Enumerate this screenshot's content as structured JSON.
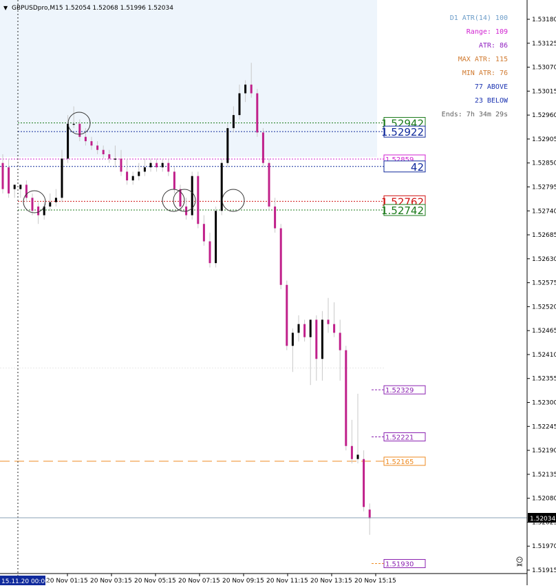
{
  "header": {
    "collapse_glyph": "▼",
    "symbol_line": "GBPUSDpro,M15  1.52054 1.52068 1.51996 1.52034"
  },
  "colors": {
    "bull": "#000000",
    "bear": "#c0208a",
    "wick": "#c8c8c8",
    "zone": "#eef5fc",
    "green": "#1a7a1a",
    "blue": "#102a9c",
    "magenta": "#d020d0",
    "red": "#d01010",
    "orange": "#ee8a20",
    "purple": "#8a20b0"
  },
  "info_panel": [
    {
      "text": "D1 ATR(14) 100",
      "color": "#6c9cc8"
    },
    {
      "text": "Range: 109",
      "color": "#d020d0"
    },
    {
      "text": "ATR: 86",
      "color": "#9020c0"
    },
    {
      "text": "MAX ATR: 115",
      "color": "#d07a30"
    },
    {
      "text": "MIN ATR: 76",
      "color": "#d07a30"
    },
    {
      "text": "77 ABOVE",
      "color": "#1a32b0"
    },
    {
      "text": "23 BELOW",
      "color": "#1a32b0"
    },
    {
      "text": "Ends: 7h 34m 29s",
      "color": "#606060"
    }
  ],
  "price_axis_labels": [
    "1.53180",
    "1.53125",
    "1.53070",
    "1.53015",
    "1.52960",
    "1.52905",
    "1.52850",
    "1.52795",
    "1.52740",
    "1.52685",
    "1.52630",
    "1.52575",
    "1.52520",
    "1.52465",
    "1.52410",
    "1.52355",
    "1.52300",
    "1.52245",
    "1.52190",
    "1.52135",
    "1.52080",
    "1.52025",
    "1.51970",
    "1.51915"
  ],
  "time_axis_labels": [
    "20 Nov 01:15",
    "20 Nov 03:15",
    "20 Nov 05:15",
    "20 Nov 07:15",
    "20 Nov 09:15",
    "20 Nov 11:15",
    "20 Nov 13:15",
    "20 Nov 15:15"
  ],
  "current_date_box": "15.11.20 00:00",
  "current_price": "1.52034",
  "level_tags": [
    {
      "price": 1.52942,
      "text": "1.52942",
      "color": "#1a7a1a",
      "large": true
    },
    {
      "price": 1.52922,
      "text": "1.52922",
      "color": "#102a9c",
      "large": true
    },
    {
      "price": 1.52859,
      "text": "1.52859",
      "color": "#d020d0",
      "large": false
    },
    {
      "price": 1.52842,
      "text": "42",
      "color": "#102a9c",
      "large": true
    },
    {
      "price": 1.52762,
      "text": "1.52762",
      "color": "#d01010",
      "large": true
    },
    {
      "price": 1.52742,
      "text": "1.52742",
      "color": "#1a7a1a",
      "large": true
    },
    {
      "price": 1.52329,
      "text": "1.52329",
      "color": "#8a20b0",
      "large": false
    },
    {
      "price": 1.52221,
      "text": "1.52221",
      "color": "#8a20b0",
      "large": false
    },
    {
      "price": 1.52165,
      "text": "1.52165",
      "color": "#ee8a20",
      "large": false
    },
    {
      "price": 1.5193,
      "text": "1.51930",
      "color": "#8a20b0",
      "large": false
    }
  ],
  "chart_data": {
    "type": "candlestick",
    "symbol": "GBPUSDpro",
    "timeframe": "M15",
    "ylim": [
      1.519,
      1.532
    ],
    "grid": false,
    "candles": [
      [
        1.5285,
        1.5287,
        1.5278,
        1.5279
      ],
      [
        1.5284,
        1.5286,
        1.5277,
        1.5278
      ],
      [
        1.5279,
        1.528,
        1.5277,
        1.528
      ],
      [
        1.5279,
        1.528,
        1.5277,
        1.528
      ],
      [
        1.528,
        1.5281,
        1.5276,
        1.5277
      ],
      [
        1.5277,
        1.5278,
        1.5273,
        1.5274
      ],
      [
        1.5275,
        1.5276,
        1.5271,
        1.5273
      ],
      [
        1.5273,
        1.5276,
        1.5272,
        1.5275
      ],
      [
        1.5275,
        1.5278,
        1.5274,
        1.5276
      ],
      [
        1.5276,
        1.5279,
        1.5275,
        1.5277
      ],
      [
        1.5277,
        1.5288,
        1.5276,
        1.5286
      ],
      [
        1.5286,
        1.5296,
        1.5285,
        1.5294
      ],
      [
        1.5294,
        1.5298,
        1.5293,
        1.5294
      ],
      [
        1.5294,
        1.5295,
        1.529,
        1.5291
      ],
      [
        1.5291,
        1.5293,
        1.5289,
        1.529
      ],
      [
        1.529,
        1.5291,
        1.5288,
        1.5289
      ],
      [
        1.5289,
        1.529,
        1.5287,
        1.5288
      ],
      [
        1.5288,
        1.5289,
        1.5286,
        1.5287
      ],
      [
        1.5287,
        1.5288,
        1.5285,
        1.5286
      ],
      [
        1.5286,
        1.5289,
        1.5284,
        1.5286
      ],
      [
        1.5286,
        1.5288,
        1.5282,
        1.5283
      ],
      [
        1.5283,
        1.5286,
        1.528,
        1.5281
      ],
      [
        1.5281,
        1.5283,
        1.528,
        1.5282
      ],
      [
        1.5282,
        1.5285,
        1.5281,
        1.5283
      ],
      [
        1.5283,
        1.5286,
        1.5282,
        1.5284
      ],
      [
        1.5284,
        1.5286,
        1.5283,
        1.5285
      ],
      [
        1.5285,
        1.5286,
        1.5283,
        1.5284
      ],
      [
        1.5284,
        1.5286,
        1.5283,
        1.5285
      ],
      [
        1.5285,
        1.5286,
        1.5282,
        1.5283
      ],
      [
        1.5283,
        1.5284,
        1.5278,
        1.5279
      ],
      [
        1.5279,
        1.528,
        1.5274,
        1.5275
      ],
      [
        1.5275,
        1.5277,
        1.5272,
        1.5273
      ],
      [
        1.5273,
        1.5283,
        1.5272,
        1.5282
      ],
      [
        1.5282,
        1.5283,
        1.527,
        1.5271
      ],
      [
        1.5271,
        1.5273,
        1.5266,
        1.5267
      ],
      [
        1.5267,
        1.5269,
        1.5261,
        1.5262
      ],
      [
        1.5262,
        1.5275,
        1.5261,
        1.5274
      ],
      [
        1.5274,
        1.5286,
        1.5273,
        1.5285
      ],
      [
        1.5285,
        1.5294,
        1.5284,
        1.5293
      ],
      [
        1.5293,
        1.5298,
        1.5292,
        1.5296
      ],
      [
        1.5296,
        1.5303,
        1.5295,
        1.5301
      ],
      [
        1.5301,
        1.5304,
        1.5299,
        1.5303
      ],
      [
        1.5303,
        1.5308,
        1.53,
        1.5301
      ],
      [
        1.5301,
        1.5302,
        1.5291,
        1.5292
      ],
      [
        1.5292,
        1.5293,
        1.5284,
        1.5285
      ],
      [
        1.5285,
        1.5286,
        1.5274,
        1.5275
      ],
      [
        1.5275,
        1.5277,
        1.5269,
        1.527
      ],
      [
        1.527,
        1.5271,
        1.5256,
        1.5257
      ],
      [
        1.5257,
        1.5258,
        1.5242,
        1.5243
      ],
      [
        1.5243,
        1.5247,
        1.5237,
        1.5246
      ],
      [
        1.5246,
        1.525,
        1.5244,
        1.5248
      ],
      [
        1.5248,
        1.5249,
        1.5244,
        1.5245
      ],
      [
        1.5245,
        1.5249,
        1.5234,
        1.5249
      ],
      [
        1.5249,
        1.525,
        1.5235,
        1.524
      ],
      [
        1.524,
        1.5251,
        1.5235,
        1.5249
      ],
      [
        1.5249,
        1.5254,
        1.5246,
        1.5248
      ],
      [
        1.5248,
        1.5253,
        1.5245,
        1.5246
      ],
      [
        1.5246,
        1.5249,
        1.5235,
        1.5242
      ],
      [
        1.5242,
        1.5243,
        1.5219,
        1.522
      ],
      [
        1.522,
        1.5226,
        1.5216,
        1.5217
      ],
      [
        1.5217,
        1.5232,
        1.5216,
        1.5218
      ],
      [
        1.5217,
        1.5219,
        1.5205,
        1.5206
      ],
      [
        1.52054,
        1.52068,
        1.51996,
        1.52034
      ]
    ]
  }
}
